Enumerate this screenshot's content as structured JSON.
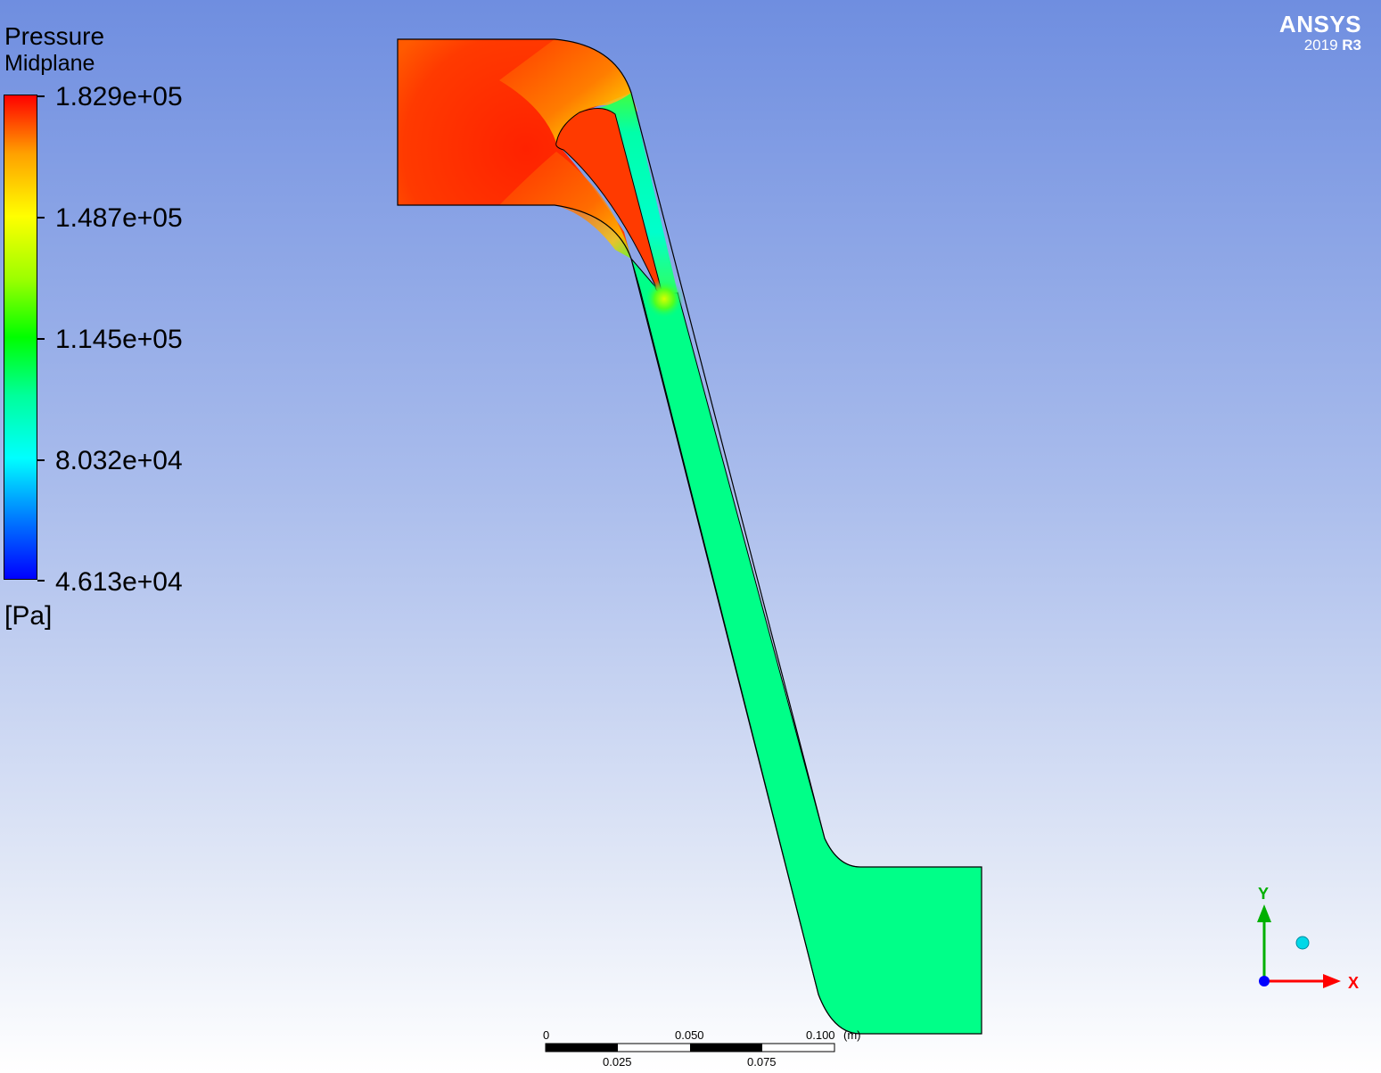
{
  "legend": {
    "title": "Pressure",
    "subtitle": "Midplane",
    "ticks": [
      "1.829e+05",
      "1.487e+05",
      "1.145e+05",
      "8.032e+04",
      "4.613e+04"
    ],
    "unit": "[Pa]"
  },
  "brand": {
    "name": "ANSYS",
    "version_year": "2019",
    "version_release": "R3"
  },
  "axes": {
    "y_label": "Y",
    "x_label": "X"
  },
  "scale": {
    "top_labels": [
      "0",
      "0.050",
      "0.100"
    ],
    "unit": "(m)",
    "bottom_labels": [
      "0.025",
      "0.075"
    ]
  },
  "colors": {
    "high": "#ff3300",
    "mid": "#00ff88",
    "axis_y": "#00b000",
    "axis_x": "#ff0000"
  }
}
